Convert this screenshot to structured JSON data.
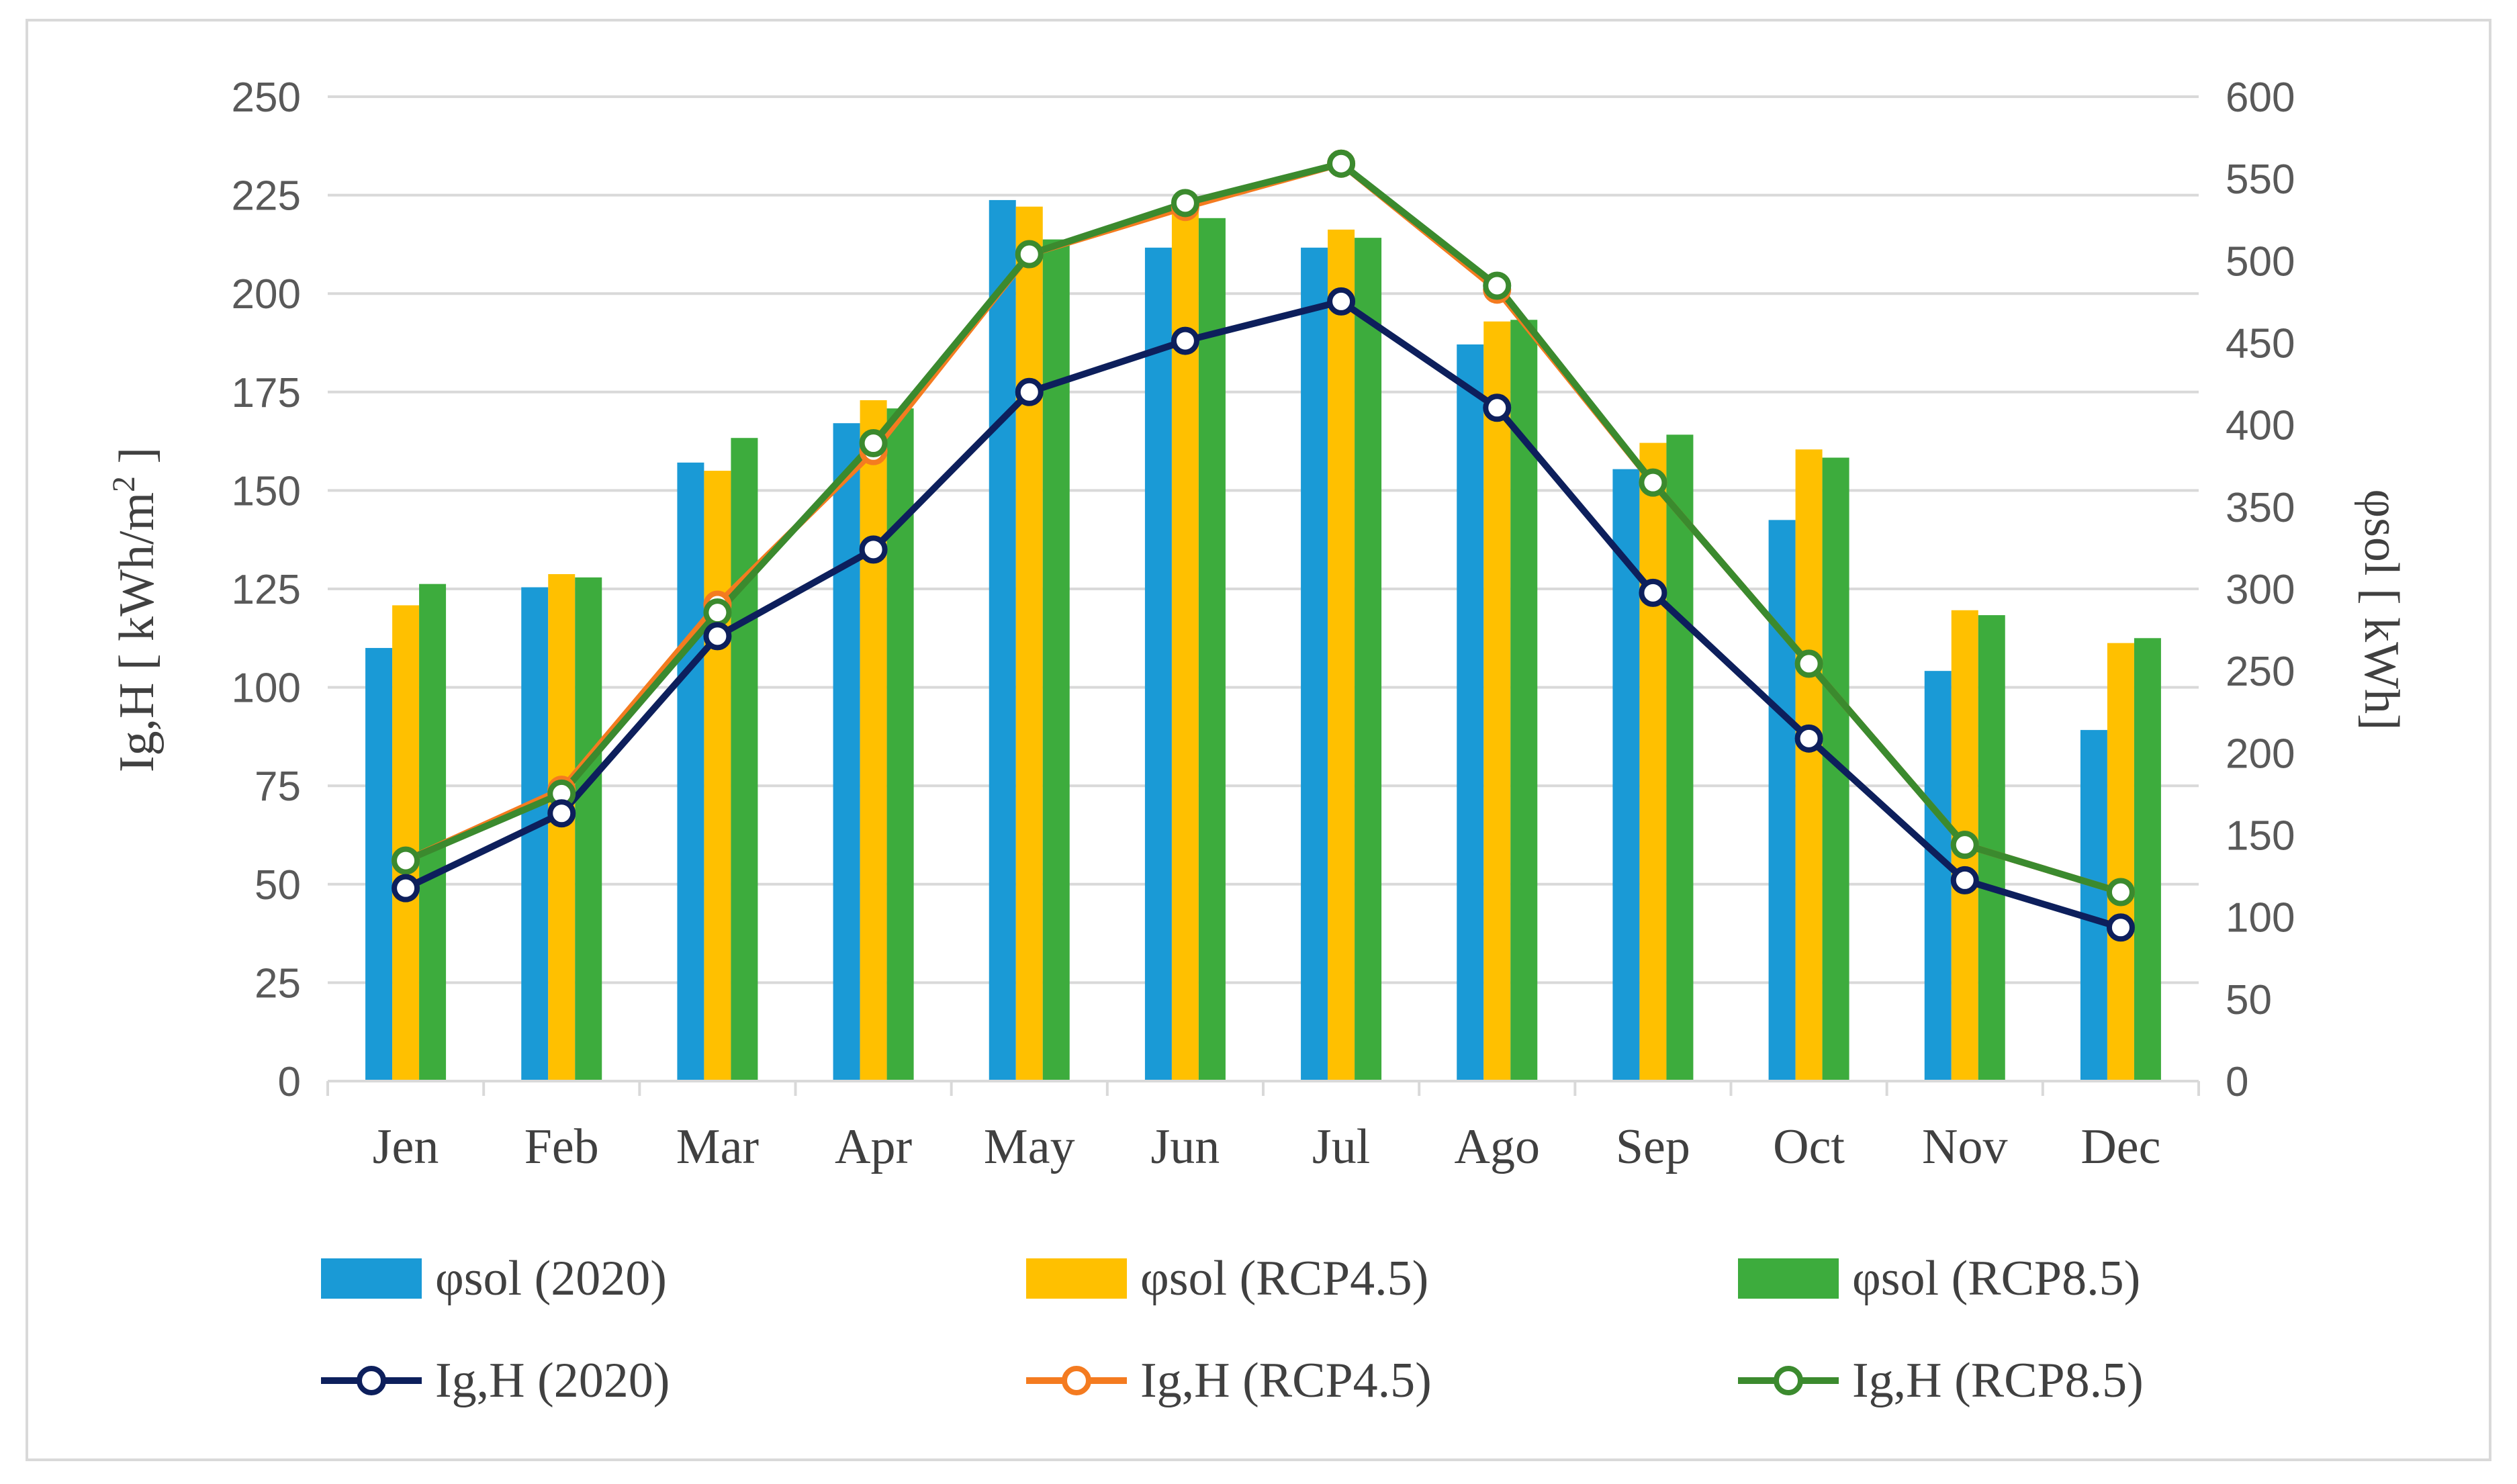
{
  "chart_data": {
    "type": "bar",
    "categories": [
      "Jen",
      "Feb",
      "Mar",
      "Apr",
      "May",
      "Jun",
      "Jul",
      "Ago",
      "Sep",
      "Oct",
      "Nov",
      "Dec"
    ],
    "bar_series": [
      {
        "name": "φsol (2020)",
        "color": "#1a9ad6",
        "values": [
          264,
          301,
          377,
          401,
          537,
          508,
          508,
          449,
          373,
          342,
          250,
          214
        ]
      },
      {
        "name": "φsol (RCP4.5)",
        "color": "#ffc000",
        "values": [
          290,
          309,
          372,
          415,
          533,
          534,
          519,
          463,
          389,
          385,
          287,
          267
        ]
      },
      {
        "name": "φsol (RCP8.5)",
        "color": "#3dac3d",
        "values": [
          303,
          307,
          392,
          410,
          513,
          526,
          514,
          464,
          394,
          380,
          284,
          270
        ]
      }
    ],
    "line_series": [
      {
        "name": "Ig,H (2020)",
        "color": "#0d1f5c",
        "values": [
          49,
          68,
          113,
          135,
          175,
          188,
          198,
          171,
          124,
          87,
          51,
          39
        ]
      },
      {
        "name": "Ig,H (RCP4.5)",
        "color": "#f47b20",
        "values": [
          56,
          74,
          121,
          160,
          210,
          222,
          233,
          201,
          152,
          106,
          60,
          48
        ]
      },
      {
        "name": "Ig,H (RCP8.5)",
        "color": "#3b8a2e",
        "values": [
          56,
          73,
          119,
          162,
          210,
          223,
          233,
          202,
          152,
          106,
          60,
          48
        ]
      }
    ],
    "y_left": {
      "label_main": "Ig,H [ kWh/m",
      "label_sup": "2",
      "label_end": " ]",
      "ylim": [
        0,
        250
      ],
      "ticks": [
        "0",
        "25",
        "50",
        "75",
        "100",
        "125",
        "150",
        "175",
        "200",
        "225",
        "250"
      ]
    },
    "y_right": {
      "label": "φsol [ kWh]",
      "ylim": [
        0,
        600
      ],
      "ticks": [
        "0",
        "50",
        "100",
        "150",
        "200",
        "250",
        "300",
        "350",
        "400",
        "450",
        "500",
        "550",
        "600"
      ]
    },
    "grid": true,
    "legend_position": "bottom"
  }
}
